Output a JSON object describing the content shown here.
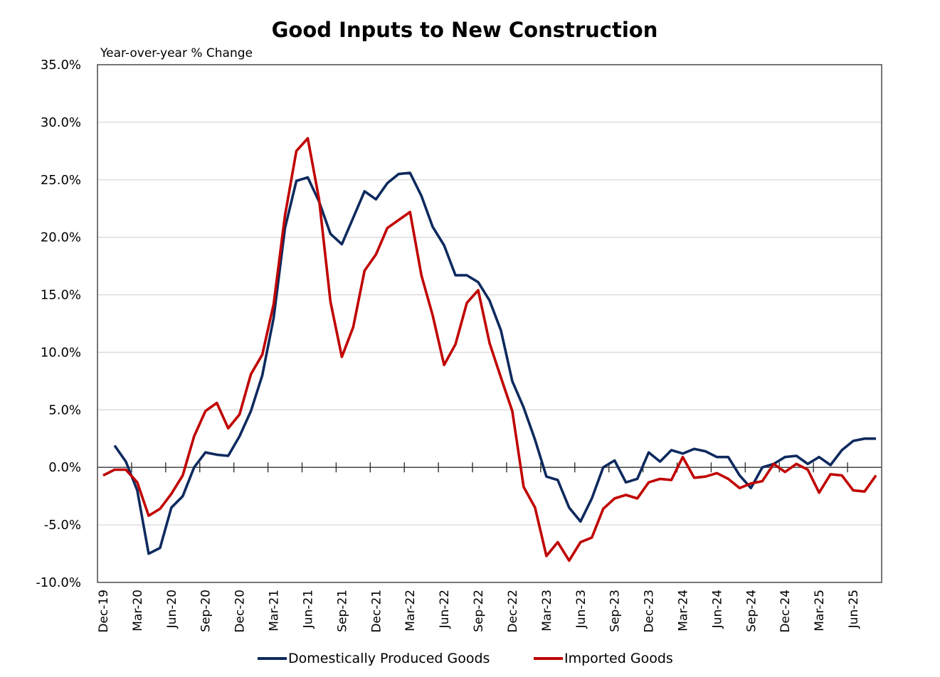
{
  "chart_data": {
    "type": "line",
    "title": "Good Inputs to New Construction",
    "subtitle": "Year-over-year % Change",
    "xlabel": "",
    "ylabel": "Year-over-year % Change",
    "ylim": [
      -10,
      35
    ],
    "yticks": [
      35,
      30,
      25,
      20,
      15,
      10,
      5,
      0,
      -5,
      -10
    ],
    "ytick_labels": [
      "35.0%",
      "30.0%",
      "25.0%",
      "20.0%",
      "15.0%",
      "10.0%",
      "5.0%",
      "0.0%",
      "-5.0%",
      "-10.0%"
    ],
    "grid": true,
    "legend_position": "bottom",
    "x": [
      "Dec-19",
      "Jan-20",
      "Feb-20",
      "Mar-20",
      "Apr-20",
      "May-20",
      "Jun-20",
      "Jul-20",
      "Aug-20",
      "Sep-20",
      "Oct-20",
      "Nov-20",
      "Dec-20",
      "Jan-21",
      "Feb-21",
      "Mar-21",
      "Apr-21",
      "May-21",
      "Jun-21",
      "Jul-21",
      "Aug-21",
      "Sep-21",
      "Oct-21",
      "Nov-21",
      "Dec-21",
      "Jan-22",
      "Feb-22",
      "Mar-22",
      "Apr-22",
      "May-22",
      "Jun-22",
      "Jul-22",
      "Aug-22",
      "Sep-22",
      "Oct-22",
      "Nov-22",
      "Dec-22",
      "Jan-23",
      "Feb-23",
      "Mar-23",
      "Apr-23",
      "May-23",
      "Jun-23",
      "Jul-23",
      "Aug-23",
      "Sep-23",
      "Oct-23",
      "Nov-23",
      "Dec-23",
      "Jan-24",
      "Feb-24",
      "Mar-24",
      "Apr-24",
      "May-24",
      "Jun-24",
      "Jul-24",
      "Aug-24",
      "Sep-24",
      "Oct-24",
      "Nov-24",
      "Dec-24",
      "Jan-25",
      "Feb-25",
      "Mar-25",
      "Apr-25",
      "May-25",
      "Jun-25",
      "Jul-25",
      "Aug-25"
    ],
    "xtick_labels": [
      "Dec-19",
      "Mar-20",
      "Jun-20",
      "Sep-20",
      "Dec-20",
      "Mar-21",
      "Jun-21",
      "Sep-21",
      "Dec-21",
      "Mar-22",
      "Jun-22",
      "Sep-22",
      "Dec-22",
      "Mar-23",
      "Jun-23",
      "Sep-23",
      "Dec-23",
      "Mar-24",
      "Jun-24",
      "Sep-24",
      "Dec-24",
      "Mar-25",
      "Jun-25"
    ],
    "series": [
      {
        "name": "Domestically Produced Goods",
        "color": "#0e2a5e",
        "values": [
          null,
          1.9,
          0.5,
          -2.0,
          -7.5,
          -7.0,
          -3.5,
          -2.5,
          0.0,
          1.3,
          1.1,
          1.0,
          2.7,
          4.9,
          8.0,
          13.0,
          20.8,
          24.9,
          25.2,
          23.1,
          20.3,
          19.4,
          21.7,
          24.0,
          23.3,
          24.7,
          25.5,
          25.6,
          23.6,
          20.9,
          19.3,
          16.7,
          16.7,
          16.1,
          14.5,
          11.9,
          7.5,
          5.2,
          2.4,
          -0.8,
          -1.1,
          -3.5,
          -4.7,
          -2.7,
          0.0,
          0.6,
          -1.3,
          -1.0,
          1.3,
          0.5,
          1.5,
          1.2,
          1.6,
          1.4,
          0.9,
          0.9,
          -0.7,
          -1.8,
          0.0,
          0.3,
          0.9,
          1.0,
          0.3,
          0.9,
          0.2,
          1.5,
          2.3,
          2.5,
          2.5
        ]
      },
      {
        "name": "Imported Goods",
        "color": "#c00000",
        "values": [
          -0.7,
          -0.2,
          -0.2,
          -1.3,
          -4.2,
          -3.6,
          -2.3,
          -0.7,
          2.7,
          4.9,
          5.6,
          3.4,
          4.6,
          8.1,
          9.8,
          14.2,
          21.9,
          27.5,
          28.6,
          23.3,
          14.4,
          9.6,
          12.2,
          17.1,
          18.5,
          20.8,
          21.5,
          22.2,
          16.7,
          13.2,
          8.9,
          10.7,
          14.3,
          15.4,
          10.8,
          7.8,
          4.9,
          -1.7,
          -3.5,
          -7.7,
          -6.5,
          -8.1,
          -6.5,
          -6.1,
          -3.6,
          -2.7,
          -2.4,
          -2.7,
          -1.3,
          -1.0,
          -1.1,
          0.9,
          -0.9,
          -0.8,
          -0.5,
          -1.0,
          -1.8,
          -1.4,
          -1.2,
          0.3,
          -0.4,
          0.3,
          -0.2,
          -2.2,
          -0.6,
          -0.7,
          -2.0,
          -2.1,
          -0.7
        ]
      }
    ]
  }
}
